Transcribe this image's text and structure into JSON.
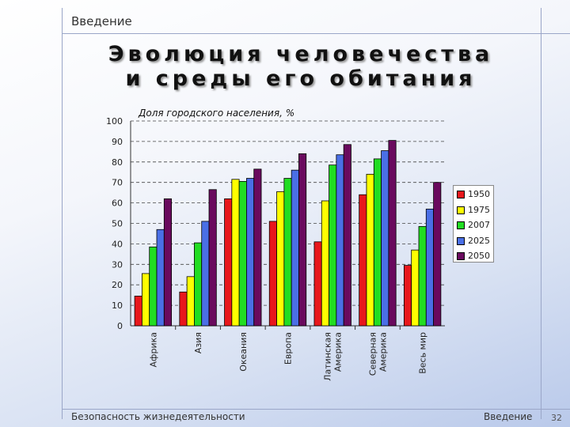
{
  "slide": {
    "section": "Введение",
    "title_line1": "Эволюция человечества",
    "title_line2": "и среды его обитания",
    "footer_left": "Безопасность жизнедеятельности",
    "footer_right": "Введение",
    "page_number": "32"
  },
  "chart_data": {
    "type": "bar",
    "title": "Доля городского населения, %",
    "categories": [
      "Африка",
      "Азия",
      "Океания",
      "Европа",
      "Латинская Америка",
      "Северная Америка",
      "Весь мир"
    ],
    "category_lines": [
      [
        "Африка"
      ],
      [
        "Азия"
      ],
      [
        "Океания"
      ],
      [
        "Европа"
      ],
      [
        "Латинская",
        "Америка"
      ],
      [
        "Северная",
        "Америка"
      ],
      [
        "Весь мир"
      ]
    ],
    "series": [
      {
        "name": "1950",
        "color": "#e8171c",
        "values": [
          14.5,
          16.5,
          62,
          51,
          41,
          64,
          29.5
        ]
      },
      {
        "name": "1975",
        "color": "#ffff00",
        "values": [
          25.5,
          24,
          71.5,
          65.5,
          61,
          74,
          37
        ]
      },
      {
        "name": "2007",
        "color": "#22dd22",
        "values": [
          38.5,
          40.5,
          70.5,
          72,
          78.5,
          81.5,
          48.5
        ]
      },
      {
        "name": "2025",
        "color": "#4a6fe6",
        "values": [
          47,
          51,
          72,
          76,
          83.5,
          85.5,
          57
        ]
      },
      {
        "name": "2050",
        "color": "#6a0a5e",
        "values": [
          62,
          66.5,
          76.5,
          84,
          88.5,
          90.5,
          70
        ]
      }
    ],
    "ylim": [
      0,
      100
    ],
    "yticks": [
      0,
      10,
      20,
      30,
      40,
      50,
      60,
      70,
      80,
      90,
      100
    ],
    "grid": true,
    "legend": "right"
  }
}
